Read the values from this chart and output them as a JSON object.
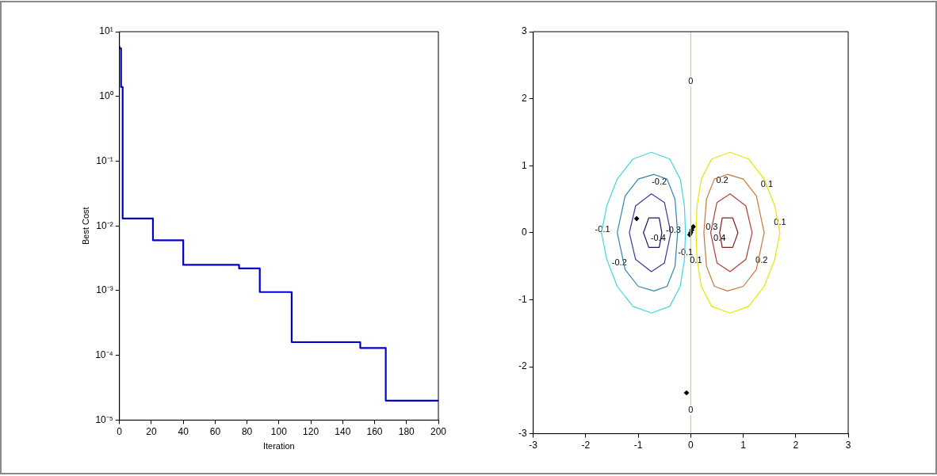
{
  "chart_data": [
    {
      "type": "step",
      "xlabel": "Iteration",
      "ylabel": "Best Cost",
      "log": "y",
      "color": "#0000c8",
      "x": [
        0,
        1,
        2,
        3,
        21,
        23,
        40,
        41,
        75,
        76,
        88,
        89,
        108,
        109,
        151,
        152,
        167,
        168,
        200
      ],
      "values": [
        6,
        5.5,
        1.4,
        0.013,
        0.013,
        0.006,
        0.006,
        0.0025,
        0.0025,
        0.0022,
        0.0022,
        0.00095,
        0.00095,
        0.00016,
        0.00016,
        0.00013,
        0.00013,
        2e-05,
        2e-05
      ],
      "xlim": [
        0,
        200
      ],
      "xticks": [
        0,
        20,
        40,
        60,
        80,
        100,
        120,
        140,
        160,
        180,
        200
      ],
      "ylim": [
        1e-05,
        10
      ],
      "yticks": [
        {
          "value": 1e-05,
          "label": "10⁻⁵"
        },
        {
          "value": 0.0001,
          "label": "10⁻⁴"
        },
        {
          "value": 0.001,
          "label": "10⁻³"
        },
        {
          "value": 0.01,
          "label": "10⁻²"
        },
        {
          "value": 0.1,
          "label": "10⁻¹"
        },
        {
          "value": 1,
          "label": "10⁰"
        },
        {
          "value": 10,
          "label": "10¹"
        }
      ]
    },
    {
      "type": "line",
      "xlim": [
        -3,
        3
      ],
      "xticks": [
        -3,
        -2,
        -1,
        0,
        1,
        2,
        3
      ],
      "ylim": [
        -3,
        3
      ],
      "yticks": [
        -3,
        -2,
        -1,
        0,
        1,
        2,
        3
      ],
      "series": [
        {
          "color": "#a8e088",
          "x": [
            0,
            0
          ],
          "values": [
            -3,
            3
          ]
        },
        {
          "type": "scatter",
          "marker": "diamond",
          "color": "#000000",
          "x": [
            -1.03,
            -0.08,
            0,
            0.02,
            0.05,
            -0.02
          ],
          "values": [
            0.21,
            -2.39,
            0,
            0.04,
            0.09,
            -0.03
          ]
        }
      ],
      "annotations": [
        "-0.1",
        "-0.2",
        "-0.2",
        "-0.3",
        "-0.4",
        "-0.1",
        "0.1",
        "0.2",
        "0.2",
        "0.1",
        "0.1",
        "0.3",
        "0.4",
        {
          "text": "0",
          "x": 0,
          "y": 2.25
        },
        {
          "text": "0",
          "x": 0,
          "y": -2.65
        }
      ]
    }
  ]
}
